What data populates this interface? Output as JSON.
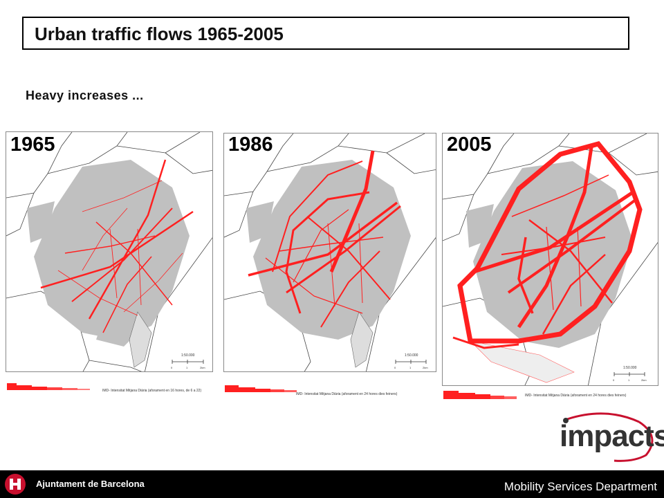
{
  "title": "Urban traffic flows 1965-2005",
  "subtitle": "Heavy increases ...",
  "panels": [
    {
      "year": "1965",
      "scale_label": "1:50.000",
      "scale_ticks": [
        "0",
        "1",
        "2km"
      ],
      "legend_caption": "IMD- Intensitat Mitjana Diària (aforament en 16 hores, de 6 a 22)"
    },
    {
      "year": "1986",
      "scale_label": "1:50.000",
      "scale_ticks": [
        "0",
        "1",
        "2km"
      ],
      "legend_caption": "IMD- Intensitat Mitjana Diària (aforament en 24 hores dies feiners)"
    },
    {
      "year": "2005",
      "scale_label": "1:50.000",
      "scale_ticks": [
        "0",
        "1",
        "2km"
      ],
      "legend_caption": "IMD- Intensitat Mitjana Diària (aforament en 24 hores dies feiners)"
    }
  ],
  "logo": {
    "text": "impacts"
  },
  "footer": {
    "organization": "Ajuntament de Barcelona",
    "department": "Mobility Services Department"
  },
  "colors": {
    "traffic": "#ff2020",
    "urban_fabric": "#c0c0c0",
    "footer_bg": "#000000"
  }
}
